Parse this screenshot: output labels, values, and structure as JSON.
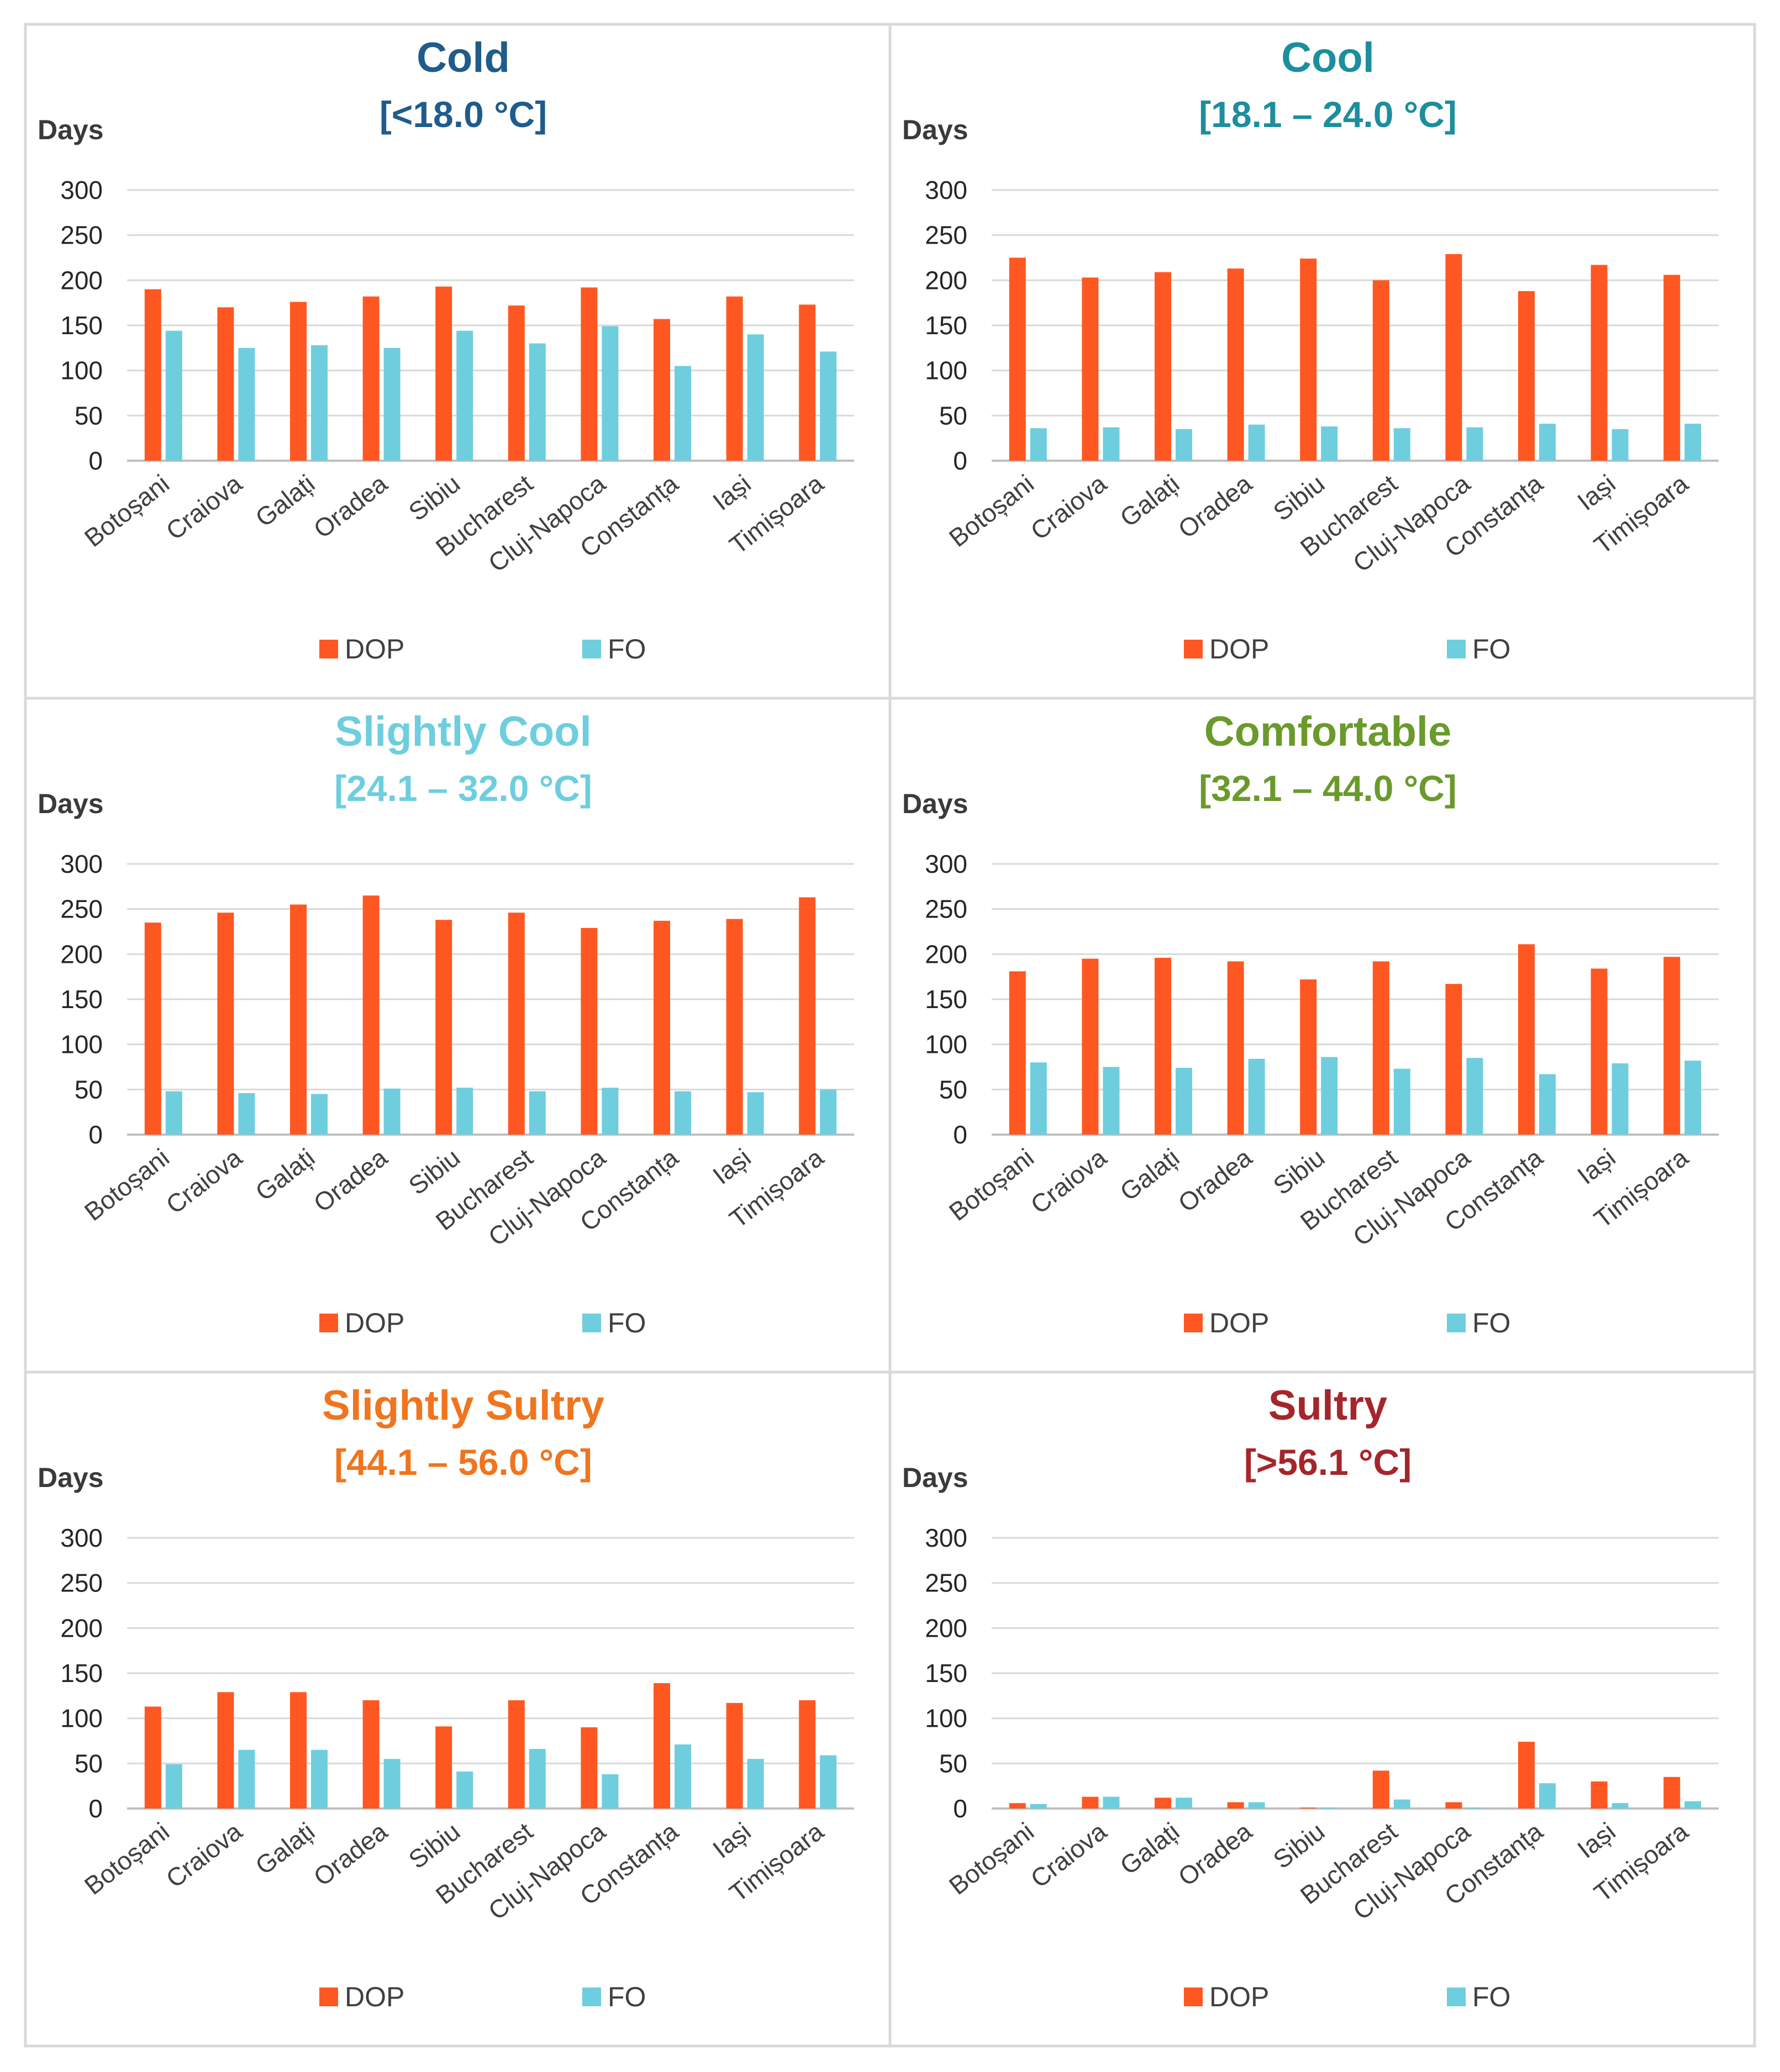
{
  "colors": {
    "DOP": "#FF5722",
    "FO": "#6ECEDE",
    "grid": "#d9d9d9",
    "text": "#404040"
  },
  "chart_data": [
    {
      "type": "bar",
      "title": "Cold",
      "subtitle_value": "[<18.0 ",
      "subtitle_unit": "°C]",
      "title_color": "#1F5C8B",
      "ylabel": "Days",
      "ylim": [
        0,
        300
      ],
      "yticks": [
        "300",
        "250",
        "200",
        "150",
        "100",
        "50",
        "0"
      ],
      "categories": [
        "Botoșani",
        "Craiova",
        "Galați",
        "Oradea",
        "Sibiu",
        "Bucharest",
        "Cluj-Napoca",
        "Constanța",
        "Iași",
        "Timișoara"
      ],
      "series": [
        {
          "name": "DOP",
          "values": [
            190,
            170,
            176,
            182,
            193,
            172,
            192,
            157,
            182,
            173
          ]
        },
        {
          "name": "FO",
          "values": [
            144,
            125,
            128,
            125,
            144,
            130,
            149,
            105,
            140,
            121
          ]
        }
      ]
    },
    {
      "type": "bar",
      "title": "Cool",
      "subtitle_value": "[18.1 – 24.0 ",
      "subtitle_unit": "°C]",
      "title_color": "#1C8E9E",
      "ylabel": "Days",
      "ylim": [
        0,
        300
      ],
      "yticks": [
        "300",
        "250",
        "200",
        "150",
        "100",
        "50",
        "0"
      ],
      "categories": [
        "Botoșani",
        "Craiova",
        "Galați",
        "Oradea",
        "Sibiu",
        "Bucharest",
        "Cluj-Napoca",
        "Constanța",
        "Iași",
        "Timișoara"
      ],
      "series": [
        {
          "name": "DOP",
          "values": [
            225,
            203,
            209,
            213,
            224,
            200,
            229,
            188,
            217,
            206
          ]
        },
        {
          "name": "FO",
          "values": [
            36,
            37,
            35,
            40,
            38,
            36,
            37,
            41,
            35,
            41
          ]
        }
      ]
    },
    {
      "type": "bar",
      "title": "Slightly Cool",
      "subtitle_value": "[24.1 – 32.0 ",
      "subtitle_unit": "°C]",
      "title_color": "#6ECEDE",
      "ylabel": "Days",
      "ylim": [
        0,
        300
      ],
      "yticks": [
        "300",
        "250",
        "200",
        "150",
        "100",
        "50",
        "0"
      ],
      "categories": [
        "Botoșani",
        "Craiova",
        "Galați",
        "Oradea",
        "Sibiu",
        "Bucharest",
        "Cluj-Napoca",
        "Constanța",
        "Iași",
        "Timișoara"
      ],
      "series": [
        {
          "name": "DOP",
          "values": [
            235,
            246,
            255,
            265,
            238,
            246,
            229,
            237,
            239,
            263
          ]
        },
        {
          "name": "FO",
          "values": [
            48,
            46,
            45,
            51,
            52,
            48,
            52,
            48,
            47,
            50
          ]
        }
      ]
    },
    {
      "type": "bar",
      "title": "Comfortable",
      "subtitle_value": "[32.1 – 44.0 ",
      "subtitle_unit": "°C]",
      "title_color": "#6A9A2C",
      "ylabel": "Days",
      "ylim": [
        0,
        300
      ],
      "yticks": [
        "300",
        "250",
        "200",
        "150",
        "100",
        "50",
        "0"
      ],
      "categories": [
        "Botoșani",
        "Craiova",
        "Galați",
        "Oradea",
        "Sibiu",
        "Bucharest",
        "Cluj-Napoca",
        "Constanța",
        "Iași",
        "Timișoara"
      ],
      "series": [
        {
          "name": "DOP",
          "values": [
            181,
            195,
            196,
            192,
            172,
            192,
            167,
            211,
            184,
            197
          ]
        },
        {
          "name": "FO",
          "values": [
            80,
            75,
            74,
            84,
            86,
            73,
            85,
            67,
            79,
            82
          ]
        }
      ]
    },
    {
      "type": "bar",
      "title": "Slightly Sultry",
      "subtitle_value": "[44.1 – 56.0 ",
      "subtitle_unit": "°C]",
      "title_color": "#F0751E",
      "ylabel": "Days",
      "ylim": [
        0,
        300
      ],
      "yticks": [
        "300",
        "250",
        "200",
        "150",
        "100",
        "50",
        "0"
      ],
      "categories": [
        "Botoșani",
        "Craiova",
        "Galați",
        "Oradea",
        "Sibiu",
        "Bucharest",
        "Cluj-Napoca",
        "Constanța",
        "Iași",
        "Timișoara"
      ],
      "series": [
        {
          "name": "DOP",
          "values": [
            113,
            129,
            129,
            120,
            91,
            120,
            90,
            139,
            117,
            120
          ]
        },
        {
          "name": "FO",
          "values": [
            49,
            65,
            65,
            55,
            41,
            66,
            38,
            71,
            55,
            59
          ]
        }
      ]
    },
    {
      "type": "bar",
      "title": "Sultry",
      "subtitle_value": "[>56.1 ",
      "subtitle_unit": "°C]",
      "title_color": "#A4262C",
      "ylabel": "Days",
      "ylim": [
        0,
        300
      ],
      "yticks": [
        "300",
        "250",
        "200",
        "150",
        "100",
        "50",
        "0"
      ],
      "categories": [
        "Botoșani",
        "Craiova",
        "Galați",
        "Oradea",
        "Sibiu",
        "Bucharest",
        "Cluj-Napoca",
        "Constanța",
        "Iași",
        "Timișoara"
      ],
      "series": [
        {
          "name": "DOP",
          "values": [
            6,
            13,
            12,
            7,
            1,
            42,
            7,
            74,
            30,
            35
          ]
        },
        {
          "name": "FO",
          "values": [
            5,
            13,
            12,
            7,
            1,
            10,
            1,
            28,
            6,
            8
          ]
        }
      ]
    }
  ]
}
